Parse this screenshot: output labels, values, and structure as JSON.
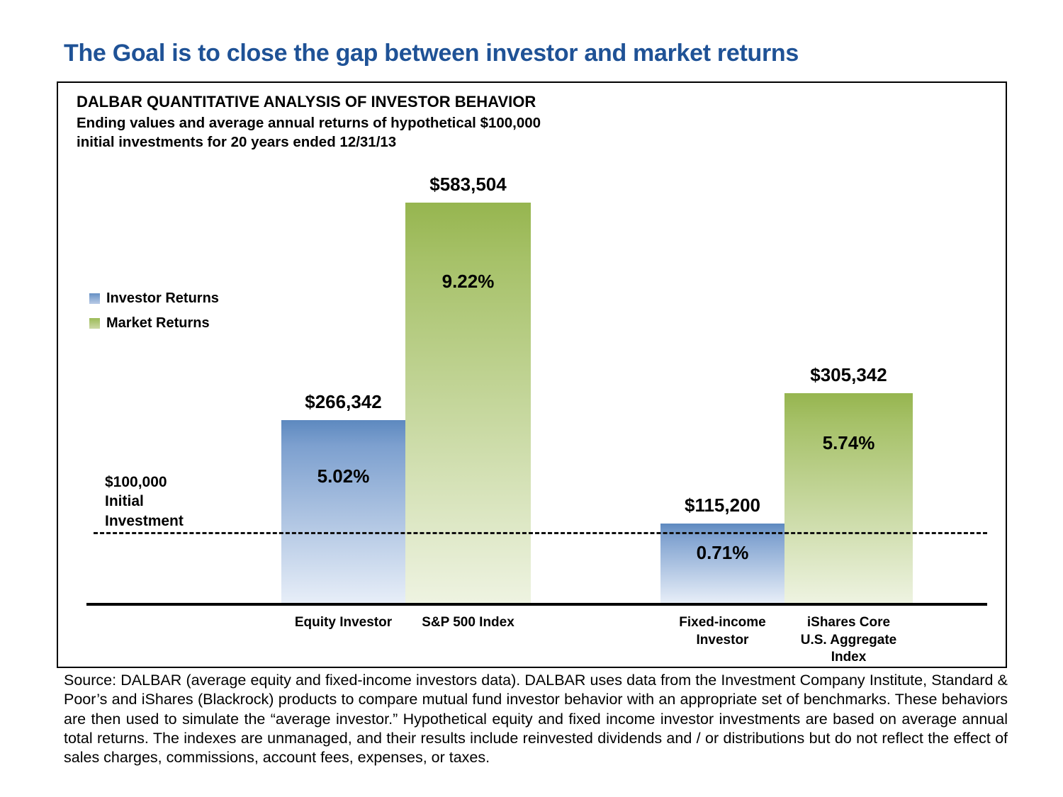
{
  "page": {
    "title": "The Goal is to close the gap between investor and market returns",
    "title_color": "#1F5296"
  },
  "panel": {
    "heading": "DALBAR QUANTITATIVE ANALYSIS OF INVESTOR BEHAVIOR",
    "subtitle_lines": "Ending values and average annual returns of hypothetical $100,000\ninitial investments for 20 years ended 12/31/13"
  },
  "legend": {
    "items": [
      {
        "label": "Investor Returns",
        "color": "#6690c5"
      },
      {
        "label": "Market Returns",
        "color": "#9cbb57"
      }
    ]
  },
  "chart_data": {
    "type": "bar",
    "title": "DALBAR QUANTITATIVE ANALYSIS OF INVESTOR BEHAVIOR",
    "subtitle": "Ending values and average annual returns of hypothetical $100,000 initial investments for 20 years ended 12/31/13",
    "categories": [
      "Equity Investor",
      "S&P 500 Index",
      "Fixed-income Investor",
      "iShares Core U.S. Aggregate Index"
    ],
    "series_legend": [
      {
        "name": "Investor Returns",
        "color": "#6690c5"
      },
      {
        "name": "Market Returns",
        "color": "#9cbb57"
      }
    ],
    "bars": [
      {
        "category": "Equity Investor",
        "category_label": "Equity Investor",
        "series": "Investor Returns",
        "ending_value": 266342,
        "ending_value_label": "$266,342",
        "avg_annual_return_pct": 5.02,
        "return_label": "5.02%"
      },
      {
        "category": "S&P 500 Index",
        "category_label": "S&P 500 Index",
        "series": "Market Returns",
        "ending_value": 583504,
        "ending_value_label": "$583,504",
        "avg_annual_return_pct": 9.22,
        "return_label": "9.22%"
      },
      {
        "category": "Fixed-income Investor",
        "category_label": "Fixed-income\nInvestor",
        "series": "Investor Returns",
        "ending_value": 115200,
        "ending_value_label": "$115,200",
        "avg_annual_return_pct": 0.71,
        "return_label": "0.71%"
      },
      {
        "category": "iShares Core U.S. Aggregate Index",
        "category_label": "iShares Core\nU.S. Aggregate\nIndex",
        "series": "Market Returns",
        "ending_value": 305342,
        "ending_value_label": "$305,342",
        "avg_annual_return_pct": 5.74,
        "return_label": "5.74%"
      }
    ],
    "baseline": {
      "value": 100000,
      "label": "$100,000 Initial Investment",
      "label_lines": "$100,000\nInitial\nInvestment"
    },
    "ylim": [
      0,
      600000
    ],
    "grid": false,
    "legend_position": "middle-left"
  },
  "source": {
    "text": "Source:  DALBAR (average equity and fixed-income investors data).  DALBAR uses data from the Investment Company Institute, Standard & Poor’s and iShares (Blackrock) products to compare mutual fund investor behavior with an appropriate set of benchmarks.  These behaviors are then used to simulate the “average investor.”  Hypothetical equity and fixed income investor investments are based on average annual total returns.  The indexes are unmanaged, and their results include reinvested dividends and / or distributions but do not reflect the effect of sales charges, commissions,  account fees, expenses, or taxes."
  }
}
